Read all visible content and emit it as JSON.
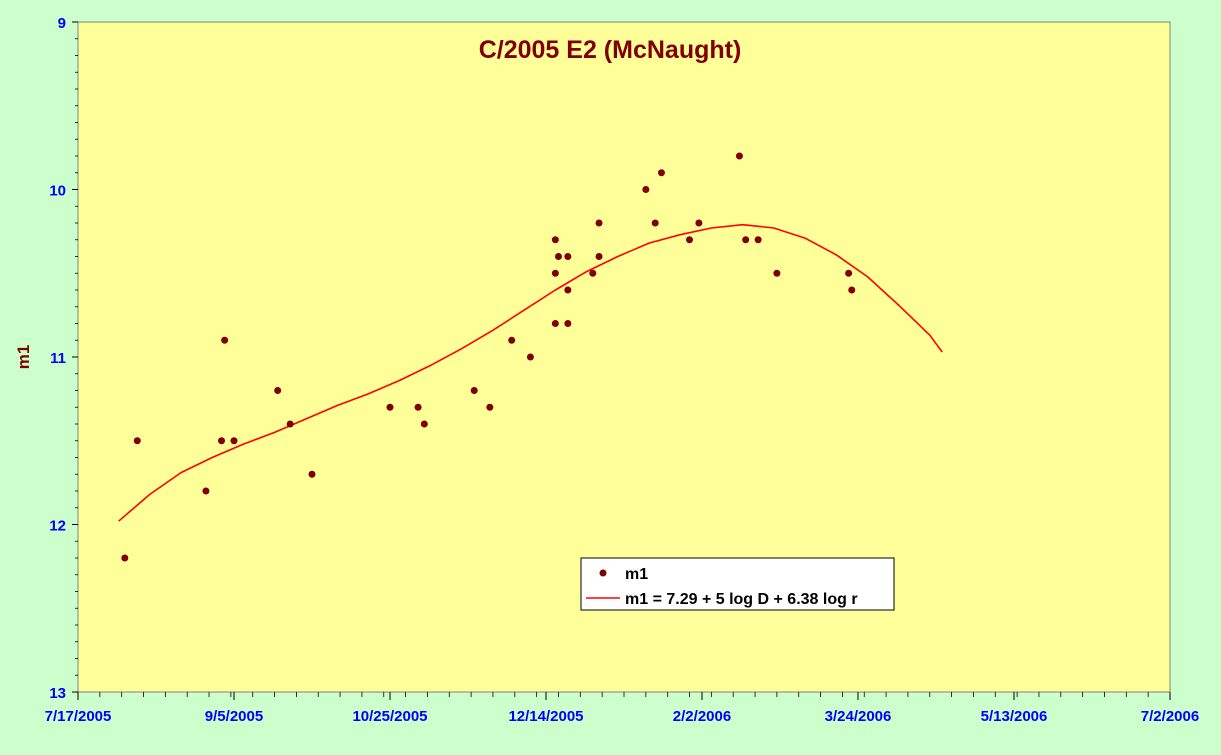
{
  "chart_data": {
    "type": "scatter",
    "title": "C/2005 E2 (McNaught)",
    "xlabel": "",
    "ylabel": "m1",
    "y_inverted": true,
    "ylim": [
      9,
      13
    ],
    "yticks": [
      9,
      10,
      11,
      12,
      13
    ],
    "xlim": [
      "2005-07-17",
      "2006-07-02"
    ],
    "xticks": [
      "7/17/2005",
      "9/5/2005",
      "10/25/2005",
      "12/14/2005",
      "2/2/2006",
      "3/24/2006",
      "5/13/2006",
      "7/2/2006"
    ],
    "grid": false,
    "legend_position": "bottom-center",
    "colors": {
      "plot_background": "#ffff99",
      "page_background": "#ccffcc",
      "points": "#800000",
      "fit_line": "#ff0000",
      "title": "#800000",
      "tick_labels": "#0000ff",
      "ylabel": "#800000"
    },
    "series": [
      {
        "name": "m1",
        "kind": "points",
        "points": [
          {
            "x": "2005-08-01",
            "y": 12.2
          },
          {
            "x": "2005-08-05",
            "y": 11.5
          },
          {
            "x": "2005-08-27",
            "y": 11.8
          },
          {
            "x": "2005-09-01",
            "y": 11.5
          },
          {
            "x": "2005-09-02",
            "y": 10.9
          },
          {
            "x": "2005-09-05",
            "y": 11.5
          },
          {
            "x": "2005-09-19",
            "y": 11.2
          },
          {
            "x": "2005-09-23",
            "y": 11.4
          },
          {
            "x": "2005-09-30",
            "y": 11.7
          },
          {
            "x": "2005-10-25",
            "y": 11.3
          },
          {
            "x": "2005-11-03",
            "y": 11.3
          },
          {
            "x": "2005-11-05",
            "y": 11.4
          },
          {
            "x": "2005-11-21",
            "y": 11.2
          },
          {
            "x": "2005-11-26",
            "y": 11.3
          },
          {
            "x": "2005-12-03",
            "y": 10.9
          },
          {
            "x": "2005-12-09",
            "y": 11.0
          },
          {
            "x": "2005-12-17",
            "y": 10.3
          },
          {
            "x": "2005-12-17",
            "y": 10.5
          },
          {
            "x": "2005-12-17",
            "y": 10.8
          },
          {
            "x": "2005-12-18",
            "y": 10.4
          },
          {
            "x": "2005-12-21",
            "y": 10.4
          },
          {
            "x": "2005-12-21",
            "y": 10.6
          },
          {
            "x": "2005-12-21",
            "y": 10.8
          },
          {
            "x": "2005-12-29",
            "y": 10.5
          },
          {
            "x": "2005-12-31",
            "y": 10.2
          },
          {
            "x": "2005-12-31",
            "y": 10.4
          },
          {
            "x": "2006-01-15",
            "y": 10.0
          },
          {
            "x": "2006-01-18",
            "y": 10.2
          },
          {
            "x": "2006-01-20",
            "y": 9.9
          },
          {
            "x": "2006-01-29",
            "y": 10.3
          },
          {
            "x": "2006-02-01",
            "y": 10.2
          },
          {
            "x": "2006-02-14",
            "y": 9.8
          },
          {
            "x": "2006-02-16",
            "y": 10.3
          },
          {
            "x": "2006-02-20",
            "y": 10.3
          },
          {
            "x": "2006-02-26",
            "y": 10.5
          },
          {
            "x": "2006-03-21",
            "y": 10.5
          },
          {
            "x": "2006-03-22",
            "y": 10.6
          }
        ]
      },
      {
        "name": "m1 = 7.29 + 5 log D + 6.38 log r",
        "kind": "line",
        "points": [
          {
            "x": "2005-07-30",
            "y": 11.98
          },
          {
            "x": "2005-08-09",
            "y": 11.82
          },
          {
            "x": "2005-08-19",
            "y": 11.69
          },
          {
            "x": "2005-08-29",
            "y": 11.6
          },
          {
            "x": "2005-09-08",
            "y": 11.52
          },
          {
            "x": "2005-09-18",
            "y": 11.45
          },
          {
            "x": "2005-09-28",
            "y": 11.37
          },
          {
            "x": "2005-10-08",
            "y": 11.29
          },
          {
            "x": "2005-10-18",
            "y": 11.22
          },
          {
            "x": "2005-10-28",
            "y": 11.14
          },
          {
            "x": "2005-11-07",
            "y": 11.05
          },
          {
            "x": "2005-11-17",
            "y": 10.95
          },
          {
            "x": "2005-11-27",
            "y": 10.84
          },
          {
            "x": "2005-12-07",
            "y": 10.72
          },
          {
            "x": "2005-12-17",
            "y": 10.6
          },
          {
            "x": "2005-12-27",
            "y": 10.49
          },
          {
            "x": "2006-01-06",
            "y": 10.4
          },
          {
            "x": "2006-01-16",
            "y": 10.32
          },
          {
            "x": "2006-01-26",
            "y": 10.27
          },
          {
            "x": "2006-02-05",
            "y": 10.23
          },
          {
            "x": "2006-02-15",
            "y": 10.21
          },
          {
            "x": "2006-02-25",
            "y": 10.23
          },
          {
            "x": "2006-03-07",
            "y": 10.29
          },
          {
            "x": "2006-03-17",
            "y": 10.39
          },
          {
            "x": "2006-03-27",
            "y": 10.52
          },
          {
            "x": "2006-04-06",
            "y": 10.69
          },
          {
            "x": "2006-04-16",
            "y": 10.87
          },
          {
            "x": "2006-04-20",
            "y": 10.97
          }
        ]
      }
    ]
  }
}
